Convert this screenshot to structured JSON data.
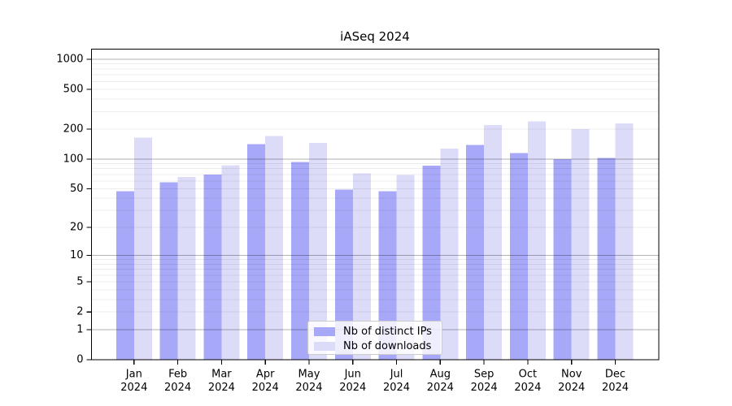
{
  "chart_data": {
    "type": "bar",
    "title": "iASeq 2024",
    "categories": [
      "Jan 2024",
      "Feb 2024",
      "Mar 2024",
      "Apr 2024",
      "May 2024",
      "Jun 2024",
      "Jul 2024",
      "Aug 2024",
      "Sep 2024",
      "Oct 2024",
      "Nov 2024",
      "Dec 2024"
    ],
    "series": [
      {
        "name": "Nb of distinct IPs",
        "color": "#a8a8f8",
        "values": [
          47,
          58,
          70,
          141,
          93,
          49,
          47,
          86,
          139,
          115,
          100,
          103
        ]
      },
      {
        "name": "Nb of downloads",
        "color": "#dcdcf8",
        "values": [
          165,
          66,
          87,
          170,
          146,
          72,
          69,
          128,
          220,
          240,
          200,
          229
        ]
      }
    ],
    "y_scale": "log1p",
    "y_ticks": [
      0,
      1,
      2,
      5,
      10,
      20,
      50,
      100,
      200,
      500,
      1000
    ],
    "ylim": [
      0,
      1265
    ],
    "xlabel": "",
    "ylabel": "",
    "grid": "horizontal, minor log lines, drawn above bars",
    "legend_position": "inside lower center"
  }
}
